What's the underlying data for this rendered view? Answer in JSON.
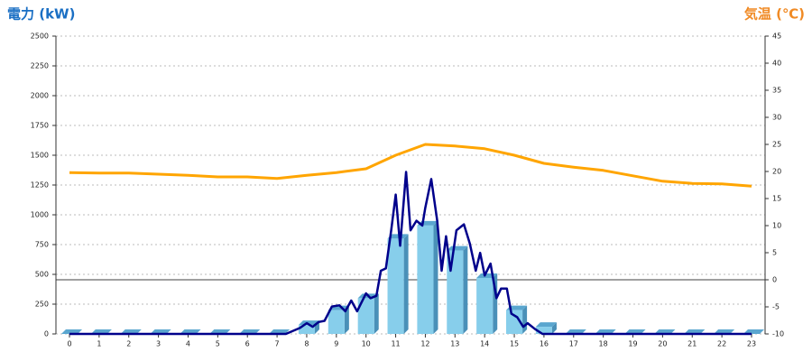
{
  "chart_data": {
    "type": "bar",
    "title": "電力 (kW)",
    "y2_title": "気温 (℃)",
    "categories": [
      "0",
      "1",
      "2",
      "3",
      "4",
      "5",
      "6",
      "7",
      "8",
      "9",
      "10",
      "11",
      "12",
      "13",
      "14",
      "15",
      "16",
      "17",
      "18",
      "19",
      "20",
      "21",
      "22",
      "23"
    ],
    "ylim": [
      0,
      2500
    ],
    "yticks": [
      0,
      250,
      500,
      750,
      1000,
      1250,
      1500,
      1750,
      2000,
      2250,
      2500
    ],
    "y2lim": [
      -10,
      45
    ],
    "y2ticks": [
      -10,
      -5,
      0,
      5,
      10,
      15,
      20,
      25,
      30,
      35,
      40,
      45
    ],
    "grid": true,
    "series": [
      {
        "type": "bar",
        "color": "#87ceeb",
        "values": [
          0,
          0,
          0,
          0,
          0,
          0,
          0,
          0,
          75,
          200,
          300,
          800,
          910,
          700,
          470,
          200,
          60,
          0,
          0,
          0,
          0,
          0,
          0,
          0
        ]
      },
      {
        "type": "line",
        "color": "#00008b",
        "x": [
          0,
          7.3,
          7.77,
          8,
          8.2,
          8.4,
          8.6,
          8.85,
          9.1,
          9.3,
          9.5,
          9.7,
          10,
          10.15,
          10.35,
          10.5,
          10.67,
          10.85,
          11,
          11.15,
          11.35,
          11.5,
          11.7,
          11.9,
          12,
          12.2,
          12.4,
          12.55,
          12.7,
          12.85,
          13.05,
          13.3,
          13.5,
          13.7,
          13.85,
          14,
          14.2,
          14.4,
          14.55,
          14.75,
          14.9,
          15.1,
          15.3,
          15.45,
          15.7,
          15.95,
          23
        ],
        "values": [
          0,
          0,
          50,
          90,
          60,
          100,
          110,
          230,
          240,
          190,
          280,
          190,
          340,
          300,
          320,
          530,
          550,
          870,
          1170,
          740,
          1360,
          870,
          950,
          910,
          1060,
          1300,
          950,
          530,
          820,
          530,
          870,
          920,
          760,
          530,
          680,
          490,
          590,
          300,
          380,
          380,
          170,
          140,
          60,
          90,
          40,
          0,
          0
        ]
      },
      {
        "type": "line",
        "axis": "y2",
        "color": "#ffa500",
        "values": [
          19.8,
          19.7,
          19.7,
          19.5,
          19.3,
          19.0,
          19.0,
          18.7,
          19.3,
          19.8,
          20.5,
          23.0,
          25.0,
          24.7,
          24.2,
          23.0,
          21.5,
          20.8,
          20.2,
          19.2,
          18.2,
          17.8,
          17.7,
          17.3
        ]
      }
    ]
  }
}
